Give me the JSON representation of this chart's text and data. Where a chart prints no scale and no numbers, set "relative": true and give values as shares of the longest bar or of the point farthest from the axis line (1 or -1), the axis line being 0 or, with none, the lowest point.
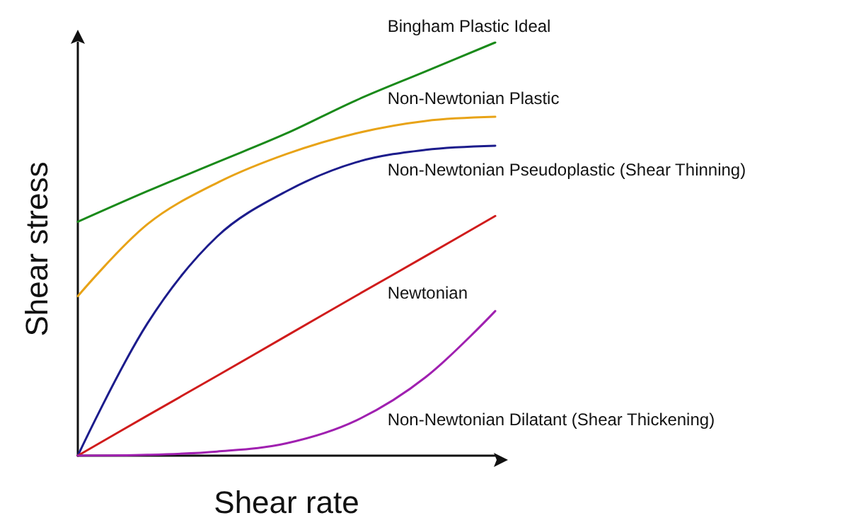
{
  "chart_data": {
    "type": "line",
    "relative": true,
    "xlabel": "Shear rate",
    "ylabel": "Shear stress",
    "categories": [
      null,
      null,
      null,
      null,
      null,
      null,
      null
    ],
    "grid": false,
    "legend": false,
    "marker": "none",
    "line_style": "solid",
    "series": [
      {
        "name": "Bingham Plastic Ideal",
        "color": "#1a8a1a",
        "values": [
          0.566,
          0.64,
          0.71,
          0.78,
          0.86,
          0.93,
          1.0
        ]
      },
      {
        "name": "Non-Newtonian Plastic",
        "color": "#e8a317",
        "values": [
          0.386,
          0.56,
          0.66,
          0.73,
          0.78,
          0.81,
          0.82
        ]
      },
      {
        "name": "Non-Newtonian Pseudoplastic (Shear Thinning)",
        "color": "#1c1c8c",
        "values": [
          0,
          0.32,
          0.53,
          0.64,
          0.71,
          0.74,
          0.75
        ]
      },
      {
        "name": "Newtonian",
        "color": "#d01c1c",
        "values": [
          0,
          0.097,
          0.193,
          0.29,
          0.387,
          0.483,
          0.58
        ]
      },
      {
        "name": "Non-Newtonian Dilatant (Shear Thickening)",
        "color": "#a020b0",
        "values": [
          0,
          0.002,
          0.01,
          0.03,
          0.085,
          0.19,
          0.35
        ]
      }
    ]
  }
}
